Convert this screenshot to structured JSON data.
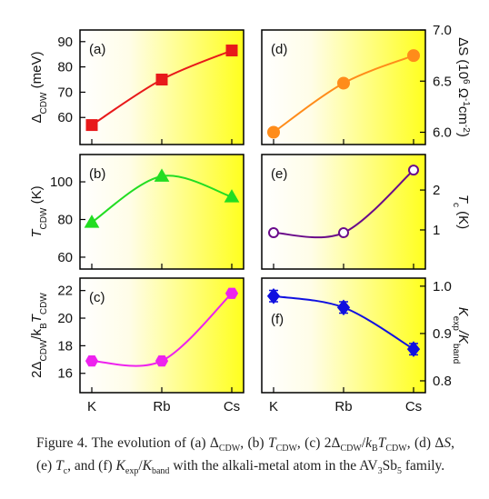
{
  "chart_data": [
    {
      "type": "line",
      "label": "(a)",
      "ylabel": [
        {
          "text": "Δ"
        },
        {
          "text": "CDW",
          "style": "sub"
        },
        {
          "text": " (meV)"
        }
      ],
      "ylim": [
        49.3,
        94.6
      ],
      "yticks": [
        60,
        70,
        80,
        90
      ],
      "color": "#e8191a",
      "marker": "square",
      "values": [
        57,
        75,
        86.5
      ],
      "yaxis": "left"
    },
    {
      "type": "line",
      "label": "(b)",
      "ylabel": [
        {
          "text": "T",
          "style": "i"
        },
        {
          "text": "CDW",
          "style": "sub"
        },
        {
          "text": " (K)"
        }
      ],
      "ylim": [
        53.7,
        114.5
      ],
      "yticks": [
        60,
        80,
        100
      ],
      "color": "#22dd22",
      "marker": "triangle",
      "values": [
        78.5,
        103,
        92
      ],
      "yaxis": "left"
    },
    {
      "type": "line",
      "label": "(c)",
      "ylabel": [
        {
          "text": "2Δ"
        },
        {
          "text": "CDW",
          "style": "sub"
        },
        {
          "text": "/k"
        },
        {
          "text": "B",
          "style": "sub"
        },
        {
          "text": "T",
          "style": "i"
        },
        {
          "text": "CDW",
          "style": "sub"
        }
      ],
      "ylim": [
        14.6,
        22.9
      ],
      "yticks": [
        16,
        18,
        20,
        22
      ],
      "color": "#ee22ee",
      "marker": "hexagon",
      "values": [
        16.9,
        16.9,
        21.8
      ],
      "yaxis": "left",
      "categories": [
        "K",
        "Rb",
        "Cs"
      ]
    },
    {
      "type": "line",
      "label": "(d)",
      "ylabel": [
        {
          "text": "ΔS (10"
        },
        {
          "text": "6",
          "style": "sup"
        },
        {
          "text": " Ω"
        },
        {
          "text": "-1",
          "style": "sup"
        },
        {
          "text": "cm"
        },
        {
          "text": "-2",
          "style": "sup"
        },
        {
          "text": ")"
        }
      ],
      "ylim": [
        5.88,
        7.0
      ],
      "yticks": [
        {
          "value": 6,
          "label": "6.0"
        },
        6.5,
        {
          "value": 7,
          "label": "7.0"
        }
      ],
      "color": "#ff8c1a",
      "marker": "circle",
      "values": [
        6.0,
        6.48,
        6.75
      ],
      "yaxis": "right"
    },
    {
      "type": "line",
      "label": "(e)",
      "ylabel": [
        {
          "text": "T",
          "style": "i"
        },
        {
          "text": "c",
          "style": "sub"
        },
        {
          "text": " (K)"
        }
      ],
      "ylim": [
        0.02,
        2.89
      ],
      "yticks": [
        1,
        2
      ],
      "color": "#6a0a8a",
      "marker": "open-circle",
      "values": [
        0.93,
        0.93,
        2.5
      ],
      "yaxis": "right"
    },
    {
      "type": "line",
      "label": "(f)",
      "ylabel": [
        {
          "text": "K",
          "style": "i"
        },
        {
          "text": "exp",
          "style": "sub"
        },
        {
          "text": "/K",
          "style": "i"
        },
        {
          "text": "band",
          "style": "sub"
        }
      ],
      "ylim": [
        0.775,
        1.017
      ],
      "yticks": [
        0.8,
        0.9,
        {
          "value": 1,
          "label": "1.0"
        }
      ],
      "color": "#1010e0",
      "marker": "diamond",
      "values": [
        0.979,
        0.955,
        0.867
      ],
      "errors": [
        0.012,
        0.012,
        0.012
      ],
      "yaxis": "right",
      "categories": [
        "K",
        "Rb",
        "Cs"
      ]
    }
  ],
  "caption": [
    {
      "text": "Figure 4."
    },
    {
      "text": " The evolution of (a) Δ"
    },
    {
      "text": "CDW",
      "style": "sub"
    },
    {
      "text": ", (b) "
    },
    {
      "text": "T",
      "style": "i"
    },
    {
      "text": "CDW",
      "style": "sub"
    },
    {
      "text": ", (c) 2Δ"
    },
    {
      "text": "CDW",
      "style": "sub"
    },
    {
      "text": "/"
    },
    {
      "text": "k",
      "style": "i"
    },
    {
      "text": "B",
      "style": "sub"
    },
    {
      "text": "T",
      "style": "i"
    },
    {
      "text": "CDW",
      "style": "sub"
    },
    {
      "text": ", (d) Δ"
    },
    {
      "text": "S",
      "style": "i"
    },
    {
      "text": ", (e) "
    },
    {
      "text": "T",
      "style": "i"
    },
    {
      "text": "c",
      "style": "sub"
    },
    {
      "text": ", and (f) "
    },
    {
      "text": "K",
      "style": "i"
    },
    {
      "text": "exp",
      "style": "sub"
    },
    {
      "text": "/"
    },
    {
      "text": "K",
      "style": "i"
    },
    {
      "text": "band",
      "style": "sub"
    },
    {
      "text": " with the alkali-metal atom in the AV"
    },
    {
      "text": "3",
      "style": "sub"
    },
    {
      "text": "Sb"
    },
    {
      "text": "5",
      "style": "sub"
    },
    {
      "text": " family."
    }
  ]
}
